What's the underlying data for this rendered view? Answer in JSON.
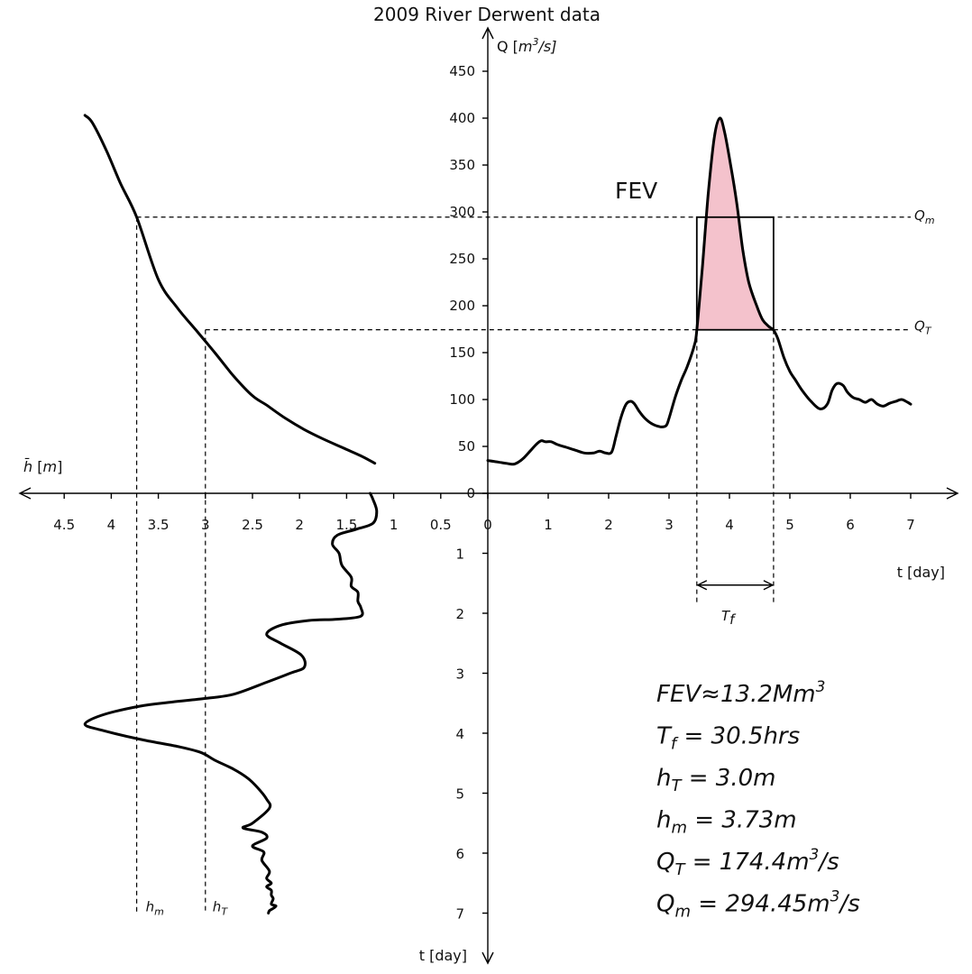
{
  "chart_data": {
    "type": "line",
    "title": "2009 River Derwent data",
    "colors": {
      "fev_fill": "#f4c2cc",
      "line": "#000000"
    },
    "axes": {
      "discharge": {
        "label_prefix": "Q [",
        "label_unit_base": "m",
        "label_unit_exp": "3",
        "label_unit_tail": "/s]",
        "ticks": [
          "0",
          "50",
          "100",
          "150",
          "200",
          "250",
          "300",
          "350",
          "400",
          "450"
        ],
        "range": [
          0,
          475
        ]
      },
      "time_right": {
        "label": "t [day]",
        "ticks": [
          "0",
          "1",
          "2",
          "3",
          "4",
          "5",
          "6",
          "7"
        ],
        "range": [
          0,
          7.7
        ]
      },
      "stage": {
        "label_symbol": "h̄",
        "label_unit": "[m]",
        "ticks": [
          "0.5",
          "1",
          "1.5",
          "2",
          "2.5",
          "3",
          "3.5",
          "4",
          "4.5"
        ],
        "range": [
          0,
          4.95
        ]
      },
      "time_down": {
        "label": "t [day]",
        "ticks": [
          "1",
          "2",
          "3",
          "4",
          "5",
          "6",
          "7"
        ],
        "range": [
          0,
          7.2
        ]
      }
    },
    "series": [
      {
        "role": "hydrograph",
        "x_axis": "time_right",
        "y_axis": "discharge",
        "x": [
          0,
          0.1,
          0.2,
          0.3,
          0.42,
          0.5,
          0.6,
          0.7,
          0.8,
          0.88,
          0.95,
          1.05,
          1.15,
          1.3,
          1.45,
          1.6,
          1.75,
          1.85,
          1.95,
          2.05,
          2.12,
          2.2,
          2.28,
          2.35,
          2.42,
          2.5,
          2.6,
          2.72,
          2.85,
          2.95,
          3.0,
          3.1,
          3.2,
          3.3,
          3.42,
          3.46,
          3.55,
          3.65,
          3.75,
          3.84,
          3.92,
          4.02,
          4.12,
          4.22,
          4.32,
          4.45,
          4.55,
          4.65,
          4.73,
          4.8,
          4.9,
          5.0,
          5.1,
          5.2,
          5.35,
          5.5,
          5.62,
          5.7,
          5.78,
          5.88,
          5.95,
          6.05,
          6.15,
          6.25,
          6.35,
          6.45,
          6.55,
          6.65,
          6.75,
          6.85,
          6.95,
          7.0
        ],
        "y": [
          35,
          34,
          33,
          32,
          31,
          33,
          38,
          45,
          52,
          56,
          55,
          55,
          52,
          49,
          46,
          43,
          43,
          45,
          43,
          44,
          60,
          80,
          94,
          98,
          96,
          88,
          80,
          74,
          71,
          72,
          80,
          102,
          120,
          135,
          158,
          174,
          240,
          320,
          380,
          400,
          385,
          350,
          310,
          260,
          225,
          200,
          185,
          178,
          174,
          165,
          145,
          130,
          120,
          110,
          98,
          90,
          95,
          110,
          117,
          115,
          108,
          102,
          100,
          97,
          100,
          95,
          93,
          96,
          98,
          100,
          97,
          95
        ]
      },
      {
        "role": "rating_curve",
        "x_axis": "stage",
        "y_axis": "discharge",
        "x": [
          1.2,
          1.35,
          1.55,
          1.75,
          1.95,
          2.15,
          2.35,
          2.5,
          2.7,
          2.9,
          3.1,
          3.3,
          3.5,
          3.73,
          3.9,
          4.05,
          4.2,
          4.28
        ],
        "y": [
          32,
          40,
          49,
          58,
          68,
          80,
          94,
          104,
          125,
          150,
          174,
          198,
          228,
          294.45,
          330,
          365,
          395,
          403
        ]
      },
      {
        "role": "stage_hydrograph",
        "x_axis": "stage",
        "y_axis": "time_down",
        "x": [
          1.25,
          1.22,
          1.18,
          1.22,
          1.4,
          1.6,
          1.65,
          1.58,
          1.55,
          1.45,
          1.45,
          1.38,
          1.38,
          1.35,
          1.35,
          1.6,
          1.9,
          2.2,
          2.35,
          2.2,
          1.98,
          1.95,
          2.1,
          2.35,
          2.7,
          3.0,
          3.35,
          3.7,
          4.1,
          4.28,
          4.1,
          3.7,
          3.3,
          3.05,
          2.9,
          2.7,
          2.55,
          2.45,
          2.35,
          2.32,
          2.5,
          2.6,
          2.4,
          2.35,
          2.5,
          2.38,
          2.4,
          2.32,
          2.35,
          2.3,
          2.35,
          2.3,
          2.3,
          2.28,
          2.3,
          2.25,
          2.28,
          2.32,
          2.33
        ],
        "y": [
          0,
          0.1,
          0.3,
          0.5,
          0.6,
          0.7,
          0.85,
          1.0,
          1.2,
          1.4,
          1.55,
          1.65,
          1.8,
          1.9,
          2.05,
          2.1,
          2.12,
          2.2,
          2.35,
          2.5,
          2.7,
          2.9,
          3.0,
          3.15,
          3.35,
          3.42,
          3.48,
          3.55,
          3.7,
          3.85,
          3.95,
          4.1,
          4.22,
          4.32,
          4.45,
          4.6,
          4.75,
          4.9,
          5.1,
          5.25,
          5.5,
          5.58,
          5.65,
          5.75,
          5.88,
          5.98,
          6.12,
          6.3,
          6.42,
          6.5,
          6.56,
          6.62,
          6.7,
          6.76,
          6.85,
          6.88,
          6.92,
          6.96,
          7.0
        ]
      }
    ],
    "reference_lines": {
      "Q_m": 294.45,
      "Q_T": 174.4,
      "h_m": 3.73,
      "h_T": 3.0,
      "flood_start_day": 3.46,
      "flood_end_day": 4.73,
      "ref_line_end_day": 7.0
    },
    "labels": {
      "Q_m": {
        "base": "Q",
        "sub": "m"
      },
      "Q_T": {
        "base": "Q",
        "sub": "T"
      },
      "h_m": {
        "base": "h",
        "sub": "m"
      },
      "h_T": {
        "base": "h",
        "sub": "T"
      },
      "T_f": {
        "base": "T",
        "sub": "f"
      },
      "fev": "FEV"
    },
    "summary": [
      {
        "base": "FEV",
        "sub": "",
        "text": "≈13.2Mm",
        "sup": "3",
        "tail": ""
      },
      {
        "base": "T",
        "sub": "f",
        "text": " = 30.5hrs",
        "sup": "",
        "tail": ""
      },
      {
        "base": "h",
        "sub": "T",
        "text": " = 3.0m",
        "sup": "",
        "tail": ""
      },
      {
        "base": "h",
        "sub": "m",
        "text": " = 3.73m",
        "sup": "",
        "tail": ""
      },
      {
        "base": "Q",
        "sub": "T",
        "text": " = 174.4m",
        "sup": "3",
        "tail": "/s"
      },
      {
        "base": "Q",
        "sub": "m",
        "text": " = 294.45m",
        "sup": "3",
        "tail": "/s"
      }
    ]
  }
}
